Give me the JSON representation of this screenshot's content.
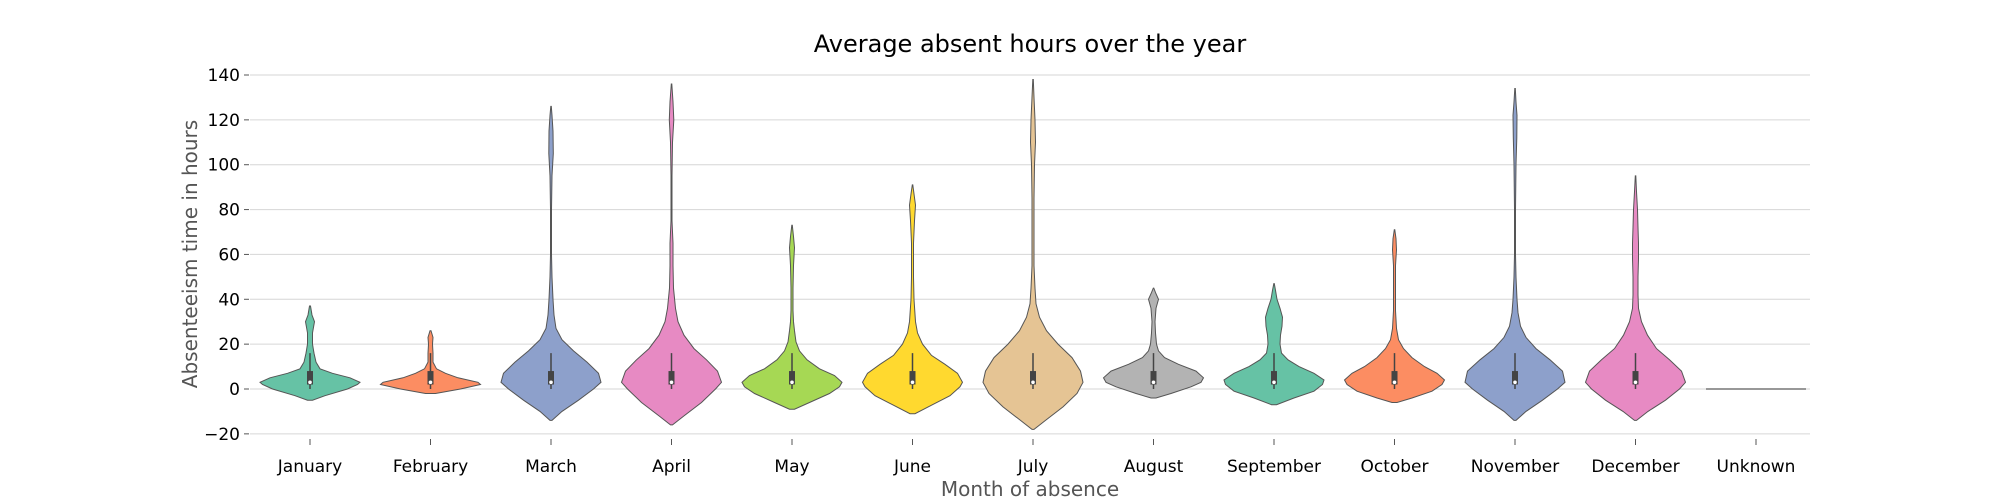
{
  "chart_data": {
    "type": "violin",
    "title": "Average absent hours over the year",
    "xlabel": "Month of absence",
    "ylabel": "Absenteeism time in hours",
    "ylim": [
      -25,
      140
    ],
    "yticks": [
      -20,
      0,
      20,
      40,
      60,
      80,
      100,
      120,
      140
    ],
    "ytick_labels": [
      "−20",
      "0",
      "20",
      "40",
      "60",
      "80",
      "100",
      "120",
      "140"
    ],
    "grid": "horizontal",
    "categories": [
      "January",
      "February",
      "March",
      "April",
      "May",
      "June",
      "July",
      "August",
      "September",
      "October",
      "November",
      "December",
      "Unknown"
    ],
    "colors": [
      "#66c2a5",
      "#fc8d62",
      "#8da0cb",
      "#e78ac3",
      "#a6d854",
      "#ffd92f",
      "#e5c494",
      "#b3b3b3",
      "#66c2a5",
      "#fc8d62",
      "#8da0cb",
      "#e78ac3",
      "#66c2a5"
    ],
    "violins": [
      {
        "min": -5,
        "max": 37,
        "q1": 2,
        "median": 3,
        "q3": 8,
        "whisker_low": 0,
        "whisker_high": 16,
        "density": [
          [
            -5,
            0.05
          ],
          [
            -3,
            0.3
          ],
          [
            0,
            0.75
          ],
          [
            2,
            0.95
          ],
          [
            3,
            1.0
          ],
          [
            5,
            0.8
          ],
          [
            7,
            0.45
          ],
          [
            9,
            0.2
          ],
          [
            12,
            0.12
          ],
          [
            16,
            0.08
          ],
          [
            20,
            0.05
          ],
          [
            25,
            0.05
          ],
          [
            30,
            0.09
          ],
          [
            33,
            0.04
          ],
          [
            37,
            0.01
          ]
        ]
      },
      {
        "min": -2,
        "max": 26,
        "q1": 2,
        "median": 3,
        "q3": 8,
        "whisker_low": 0,
        "whisker_high": 16,
        "density": [
          [
            -2,
            0.1
          ],
          [
            0,
            0.6
          ],
          [
            2,
            1.0
          ],
          [
            3,
            0.95
          ],
          [
            5,
            0.55
          ],
          [
            7,
            0.3
          ],
          [
            9,
            0.12
          ],
          [
            12,
            0.05
          ],
          [
            16,
            0.05
          ],
          [
            20,
            0.04
          ],
          [
            23,
            0.05
          ],
          [
            26,
            0.01
          ]
        ]
      },
      {
        "min": -14,
        "max": 126,
        "q1": 2,
        "median": 3,
        "q3": 8,
        "whisker_low": 0,
        "whisker_high": 16,
        "density": [
          [
            -14,
            0.02
          ],
          [
            -10,
            0.22
          ],
          [
            -5,
            0.55
          ],
          [
            0,
            0.85
          ],
          [
            3,
            1.0
          ],
          [
            7,
            0.95
          ],
          [
            12,
            0.72
          ],
          [
            17,
            0.45
          ],
          [
            22,
            0.22
          ],
          [
            27,
            0.1
          ],
          [
            33,
            0.06
          ],
          [
            40,
            0.04
          ],
          [
            50,
            0.02
          ],
          [
            60,
            0.01
          ],
          [
            80,
            0.01
          ],
          [
            95,
            0.02
          ],
          [
            105,
            0.045
          ],
          [
            115,
            0.04
          ],
          [
            122,
            0.02
          ],
          [
            126,
            0.005
          ]
        ]
      },
      {
        "min": -16,
        "max": 136,
        "q1": 2,
        "median": 3,
        "q3": 8,
        "whisker_low": 0,
        "whisker_high": 16,
        "density": [
          [
            -16,
            0.02
          ],
          [
            -12,
            0.25
          ],
          [
            -6,
            0.6
          ],
          [
            0,
            0.88
          ],
          [
            3,
            1.0
          ],
          [
            8,
            0.92
          ],
          [
            13,
            0.7
          ],
          [
            18,
            0.45
          ],
          [
            24,
            0.25
          ],
          [
            30,
            0.13
          ],
          [
            36,
            0.08
          ],
          [
            45,
            0.04
          ],
          [
            55,
            0.03
          ],
          [
            65,
            0.03
          ],
          [
            75,
            0.01
          ],
          [
            95,
            0.01
          ],
          [
            110,
            0.02
          ],
          [
            120,
            0.045
          ],
          [
            128,
            0.03
          ],
          [
            136,
            0.005
          ]
        ]
      },
      {
        "min": -9,
        "max": 73,
        "q1": 2,
        "median": 3,
        "q3": 8,
        "whisker_low": 0,
        "whisker_high": 16,
        "density": [
          [
            -9,
            0.05
          ],
          [
            -6,
            0.35
          ],
          [
            -2,
            0.75
          ],
          [
            1,
            0.95
          ],
          [
            3,
            1.0
          ],
          [
            6,
            0.85
          ],
          [
            9,
            0.55
          ],
          [
            13,
            0.3
          ],
          [
            17,
            0.15
          ],
          [
            21,
            0.08
          ],
          [
            26,
            0.05
          ],
          [
            30,
            0.03
          ],
          [
            35,
            0.02
          ],
          [
            45,
            0.02
          ],
          [
            55,
            0.03
          ],
          [
            63,
            0.05
          ],
          [
            68,
            0.03
          ],
          [
            73,
            0.005
          ]
        ]
      },
      {
        "min": -11,
        "max": 91,
        "q1": 2,
        "median": 3,
        "q3": 8,
        "whisker_low": 0,
        "whisker_high": 16,
        "density": [
          [
            -11,
            0.05
          ],
          [
            -7,
            0.4
          ],
          [
            -3,
            0.75
          ],
          [
            1,
            0.95
          ],
          [
            3,
            1.0
          ],
          [
            7,
            0.9
          ],
          [
            11,
            0.65
          ],
          [
            15,
            0.38
          ],
          [
            20,
            0.2
          ],
          [
            25,
            0.1
          ],
          [
            30,
            0.06
          ],
          [
            40,
            0.03
          ],
          [
            50,
            0.02
          ],
          [
            65,
            0.02
          ],
          [
            75,
            0.04
          ],
          [
            82,
            0.06
          ],
          [
            87,
            0.03
          ],
          [
            91,
            0.005
          ]
        ]
      },
      {
        "min": -18,
        "max": 138,
        "q1": 2,
        "median": 3,
        "q3": 8,
        "whisker_low": 0,
        "whisker_high": 16,
        "density": [
          [
            -18,
            0.02
          ],
          [
            -14,
            0.25
          ],
          [
            -8,
            0.6
          ],
          [
            -2,
            0.88
          ],
          [
            3,
            1.0
          ],
          [
            8,
            0.95
          ],
          [
            14,
            0.78
          ],
          [
            20,
            0.5
          ],
          [
            26,
            0.27
          ],
          [
            32,
            0.13
          ],
          [
            38,
            0.06
          ],
          [
            45,
            0.04
          ],
          [
            55,
            0.02
          ],
          [
            70,
            0.02
          ],
          [
            85,
            0.02
          ],
          [
            100,
            0.03
          ],
          [
            110,
            0.05
          ],
          [
            120,
            0.04
          ],
          [
            130,
            0.02
          ],
          [
            138,
            0.005
          ]
        ]
      },
      {
        "min": -4,
        "max": 45,
        "q1": 2,
        "median": 3,
        "q3": 8,
        "whisker_low": 0,
        "whisker_high": 16,
        "density": [
          [
            -4,
            0.05
          ],
          [
            -2,
            0.35
          ],
          [
            1,
            0.75
          ],
          [
            3,
            0.95
          ],
          [
            5,
            1.0
          ],
          [
            8,
            0.85
          ],
          [
            11,
            0.5
          ],
          [
            14,
            0.22
          ],
          [
            17,
            0.1
          ],
          [
            20,
            0.06
          ],
          [
            25,
            0.04
          ],
          [
            30,
            0.03
          ],
          [
            36,
            0.05
          ],
          [
            40,
            0.1
          ],
          [
            43,
            0.04
          ],
          [
            45,
            0.005
          ]
        ]
      },
      {
        "min": -7,
        "max": 47,
        "q1": 2,
        "median": 3,
        "q3": 8,
        "whisker_low": 0,
        "whisker_high": 16,
        "density": [
          [
            -7,
            0.05
          ],
          [
            -4,
            0.4
          ],
          [
            -1,
            0.8
          ],
          [
            2,
            0.97
          ],
          [
            4,
            1.0
          ],
          [
            7,
            0.8
          ],
          [
            10,
            0.5
          ],
          [
            13,
            0.28
          ],
          [
            16,
            0.15
          ],
          [
            20,
            0.12
          ],
          [
            24,
            0.13
          ],
          [
            28,
            0.16
          ],
          [
            32,
            0.17
          ],
          [
            36,
            0.12
          ],
          [
            40,
            0.06
          ],
          [
            44,
            0.03
          ],
          [
            47,
            0.005
          ]
        ]
      },
      {
        "min": -6,
        "max": 71,
        "q1": 2,
        "median": 3,
        "q3": 8,
        "whisker_low": 0,
        "whisker_high": 16,
        "density": [
          [
            -6,
            0.05
          ],
          [
            -4,
            0.35
          ],
          [
            -1,
            0.75
          ],
          [
            2,
            0.95
          ],
          [
            4,
            1.0
          ],
          [
            7,
            0.85
          ],
          [
            10,
            0.6
          ],
          [
            14,
            0.35
          ],
          [
            18,
            0.18
          ],
          [
            22,
            0.08
          ],
          [
            27,
            0.04
          ],
          [
            35,
            0.02
          ],
          [
            45,
            0.02
          ],
          [
            55,
            0.02
          ],
          [
            62,
            0.04
          ],
          [
            67,
            0.03
          ],
          [
            71,
            0.005
          ]
        ]
      },
      {
        "min": -14,
        "max": 134,
        "q1": 2,
        "median": 3,
        "q3": 8,
        "whisker_low": 0,
        "whisker_high": 16,
        "density": [
          [
            -14,
            0.02
          ],
          [
            -10,
            0.22
          ],
          [
            -5,
            0.55
          ],
          [
            0,
            0.85
          ],
          [
            3,
            1.0
          ],
          [
            8,
            0.95
          ],
          [
            13,
            0.7
          ],
          [
            18,
            0.42
          ],
          [
            23,
            0.22
          ],
          [
            28,
            0.11
          ],
          [
            34,
            0.06
          ],
          [
            40,
            0.04
          ],
          [
            50,
            0.02
          ],
          [
            60,
            0.01
          ],
          [
            80,
            0.01
          ],
          [
            100,
            0.02
          ],
          [
            112,
            0.035
          ],
          [
            122,
            0.04
          ],
          [
            128,
            0.02
          ],
          [
            134,
            0.005
          ]
        ]
      },
      {
        "min": -14,
        "max": 95,
        "q1": 2,
        "median": 3,
        "q3": 8,
        "whisker_low": 0,
        "whisker_high": 16,
        "density": [
          [
            -14,
            0.02
          ],
          [
            -10,
            0.25
          ],
          [
            -5,
            0.6
          ],
          [
            0,
            0.88
          ],
          [
            3,
            1.0
          ],
          [
            8,
            0.92
          ],
          [
            13,
            0.68
          ],
          [
            18,
            0.42
          ],
          [
            24,
            0.24
          ],
          [
            30,
            0.12
          ],
          [
            36,
            0.06
          ],
          [
            42,
            0.05
          ],
          [
            50,
            0.05
          ],
          [
            58,
            0.06
          ],
          [
            65,
            0.06
          ],
          [
            72,
            0.05
          ],
          [
            80,
            0.04
          ],
          [
            88,
            0.02
          ],
          [
            95,
            0.005
          ]
        ]
      },
      {
        "min": 0,
        "max": 0,
        "flat": true
      }
    ]
  }
}
